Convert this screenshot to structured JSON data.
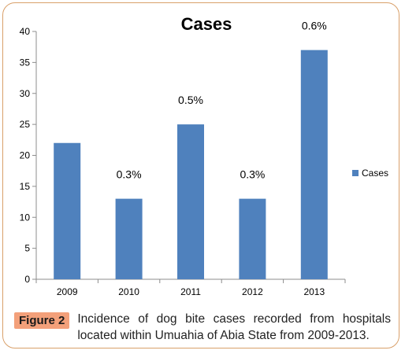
{
  "chart_data": {
    "type": "bar",
    "title": "Cases",
    "categories": [
      "2009",
      "2010",
      "2011",
      "2012",
      "2013"
    ],
    "series": [
      {
        "name": "Cases",
        "values": [
          22,
          13,
          25,
          13,
          37
        ],
        "data_labels": [
          "",
          "0.3%",
          "0.5%",
          "0.3%",
          "0.6%"
        ]
      }
    ],
    "yticks": [
      "0",
      "5",
      "10",
      "15",
      "20",
      "25",
      "30",
      "35",
      "40"
    ],
    "ylim": [
      0,
      40
    ],
    "xlabel": "",
    "ylabel": "",
    "grid": false,
    "legend": "right",
    "bar_color": "#4f81bd"
  },
  "caption": {
    "label": "Figure 2",
    "text": "Incidence of dog bite cases recorded from hospitals located within Umuahia of Abia State from 2009-2013."
  },
  "colors": {
    "frame_border": "#d9a06a",
    "label_background": "#f3a07a"
  }
}
